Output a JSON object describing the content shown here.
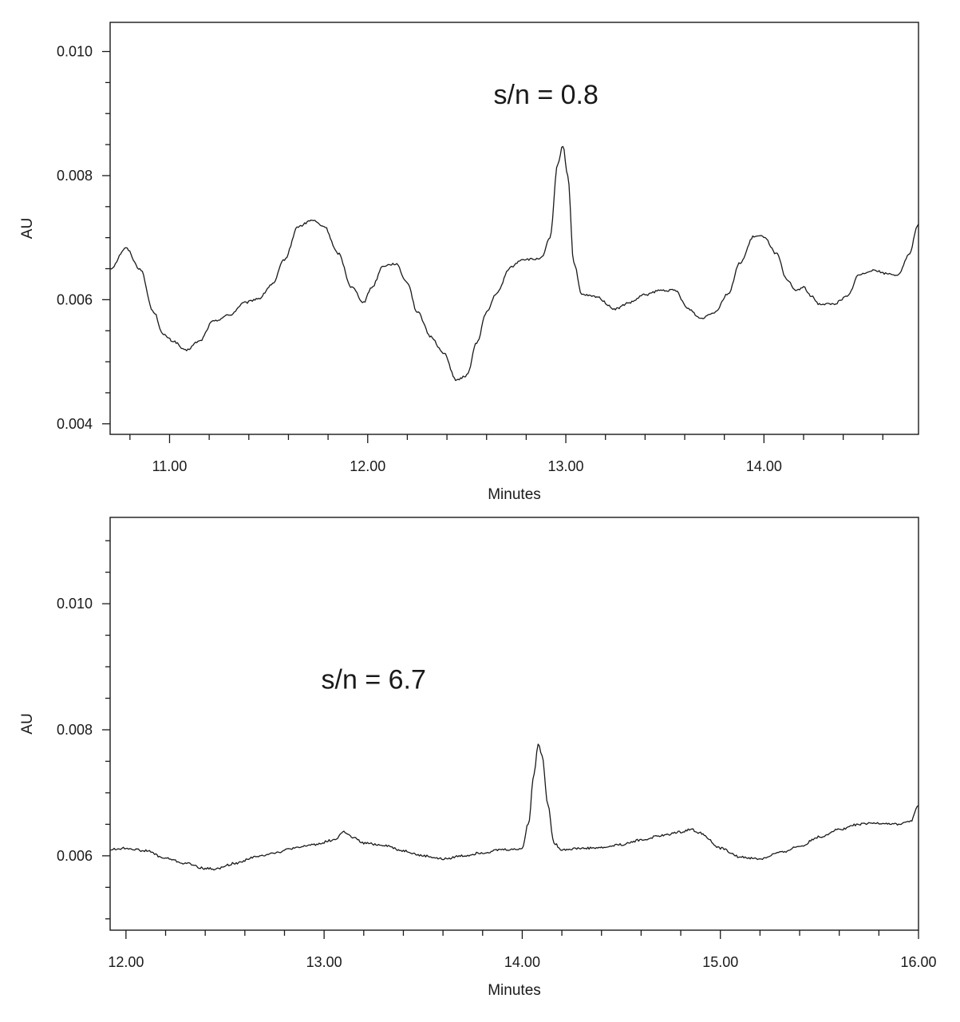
{
  "chart_data": [
    {
      "type": "line",
      "title": "",
      "xlabel": "Minutes",
      "ylabel": "AU",
      "xlim": [
        10.7,
        14.78
      ],
      "ylim": [
        0.00383,
        0.01047
      ],
      "x_major_ticks": [
        11.0,
        12.0,
        13.0,
        14.0
      ],
      "x_tick_labels": [
        "11.00",
        "12.00",
        "13.00",
        "14.00"
      ],
      "x_minor_step": 0.2,
      "y_major_ticks": [
        0.004,
        0.006,
        0.008,
        0.01
      ],
      "y_tick_labels": [
        "0.004",
        "0.006",
        "0.008",
        "0.010"
      ],
      "y_minor_step": 0.0005,
      "grid": false,
      "annotation": {
        "text": "s/n = 0.8",
        "x": 12.9,
        "y": 0.00916
      },
      "series": [
        {
          "x": [
            10.7,
            10.78,
            10.85,
            10.92,
            10.97,
            11.02,
            11.08,
            11.15,
            11.22,
            11.3,
            11.38,
            11.45,
            11.52,
            11.58,
            11.65,
            11.72,
            11.78,
            11.85,
            11.92,
            11.98,
            12.02,
            12.08,
            12.14,
            12.2,
            12.25,
            12.32,
            12.38,
            12.45,
            12.5,
            12.55,
            12.6,
            12.65,
            12.72,
            12.78,
            12.84,
            12.88,
            12.92,
            12.96,
            12.985,
            13.01,
            13.04,
            13.08,
            13.15,
            13.25,
            13.32,
            13.4,
            13.48,
            13.55,
            13.62,
            13.68,
            13.75,
            13.82,
            13.88,
            13.95,
            14.0,
            14.06,
            14.12,
            14.16,
            14.2,
            14.24,
            14.28,
            14.35,
            14.42,
            14.48,
            14.55,
            14.62,
            14.68,
            14.73,
            14.78
          ],
          "y": [
            0.0065,
            0.00683,
            0.0065,
            0.0058,
            0.00543,
            0.00533,
            0.00518,
            0.00533,
            0.00565,
            0.00575,
            0.00595,
            0.00602,
            0.00625,
            0.00665,
            0.00718,
            0.00728,
            0.00718,
            0.00675,
            0.0062,
            0.00596,
            0.0062,
            0.00655,
            0.00658,
            0.00628,
            0.0058,
            0.0054,
            0.00515,
            0.0047,
            0.00478,
            0.0053,
            0.0058,
            0.0061,
            0.00652,
            0.00665,
            0.00665,
            0.00668,
            0.007,
            0.0082,
            0.00848,
            0.008,
            0.0066,
            0.00608,
            0.00605,
            0.00585,
            0.00595,
            0.00608,
            0.00615,
            0.00615,
            0.00585,
            0.0057,
            0.0058,
            0.0061,
            0.0066,
            0.00702,
            0.00702,
            0.00675,
            0.0063,
            0.00615,
            0.0062,
            0.00605,
            0.00593,
            0.00593,
            0.00605,
            0.0064,
            0.00648,
            0.00642,
            0.0064,
            0.00672,
            0.00722
          ]
        }
      ]
    },
    {
      "type": "line",
      "title": "",
      "xlabel": "Minutes",
      "ylabel": "AU",
      "xlim": [
        11.92,
        16.0
      ],
      "ylim": [
        0.00482,
        0.01137
      ],
      "x_major_ticks": [
        12.0,
        13.0,
        14.0,
        15.0,
        16.0
      ],
      "x_tick_labels": [
        "12.00",
        "13.00",
        "14.00",
        "15.00",
        "16.00"
      ],
      "x_minor_step": 0.2,
      "y_major_ticks": [
        0.006,
        0.008,
        0.01
      ],
      "y_tick_labels": [
        "0.006",
        "0.008",
        "0.010"
      ],
      "y_minor_step": 0.0005,
      "grid": false,
      "annotation": {
        "text": "s/n = 6.7",
        "x": 13.25,
        "y": 0.00865
      },
      "series": [
        {
          "x": [
            11.92,
            12.0,
            12.1,
            12.2,
            12.3,
            12.4,
            12.45,
            12.55,
            12.65,
            12.75,
            12.85,
            12.95,
            13.05,
            13.1,
            13.15,
            13.2,
            13.3,
            13.4,
            13.5,
            13.6,
            13.7,
            13.8,
            13.9,
            13.96,
            14.0,
            14.03,
            14.06,
            14.08,
            14.1,
            14.13,
            14.16,
            14.2,
            14.3,
            14.4,
            14.5,
            14.6,
            14.7,
            14.8,
            14.85,
            14.9,
            15.0,
            15.1,
            15.2,
            15.3,
            15.4,
            15.5,
            15.6,
            15.7,
            15.8,
            15.9,
            15.96,
            16.0
          ],
          "y": [
            0.0061,
            0.00612,
            0.00608,
            0.00596,
            0.00588,
            0.0058,
            0.00579,
            0.00588,
            0.00598,
            0.00605,
            0.00612,
            0.00618,
            0.00625,
            0.00638,
            0.00628,
            0.0062,
            0.00617,
            0.00608,
            0.006,
            0.00595,
            0.006,
            0.00605,
            0.0061,
            0.0061,
            0.00612,
            0.0065,
            0.0073,
            0.00778,
            0.0076,
            0.0068,
            0.0062,
            0.0061,
            0.00612,
            0.00613,
            0.00618,
            0.00625,
            0.00632,
            0.00638,
            0.00642,
            0.00636,
            0.00612,
            0.00598,
            0.00595,
            0.00605,
            0.00615,
            0.0063,
            0.00642,
            0.0065,
            0.00652,
            0.0065,
            0.00655,
            0.0068
          ]
        }
      ]
    }
  ]
}
